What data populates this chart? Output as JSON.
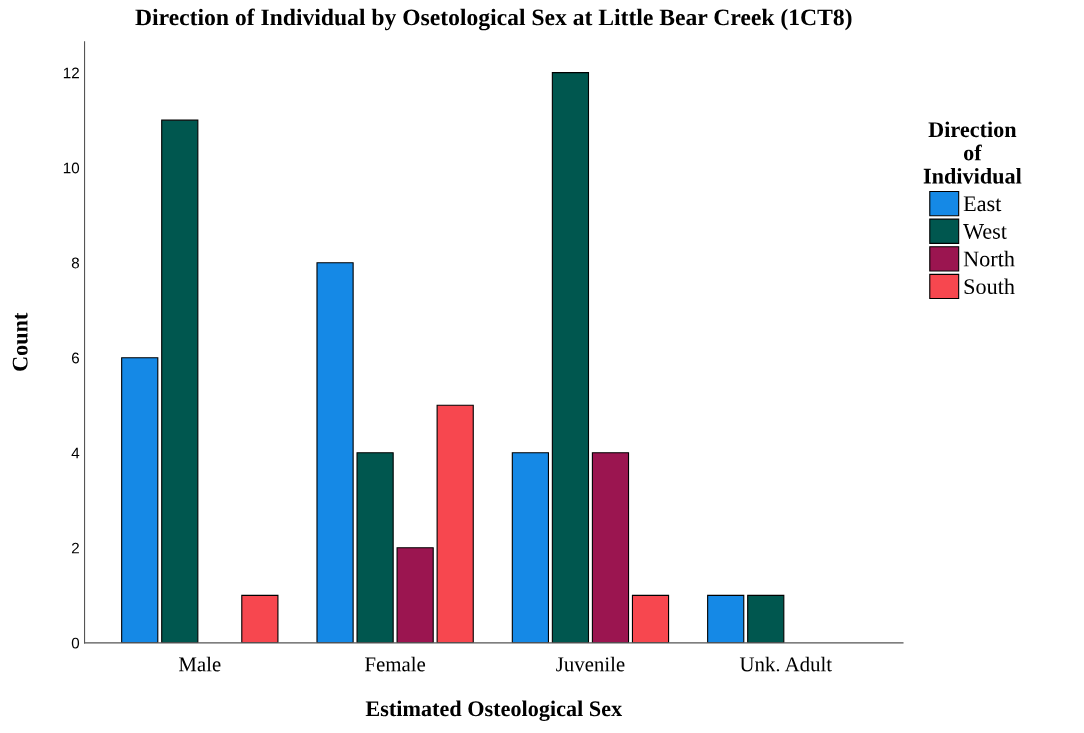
{
  "chart_data": {
    "type": "bar",
    "title": "Direction of Individual by Osetological Sex at Little Bear Creek (1CT8)",
    "xlabel": "Estimated Osteological Sex",
    "ylabel": "Count",
    "legend_title": "Direction\nof\nIndividual",
    "categories": [
      "Male",
      "Female",
      "Juvenile",
      "Unk. Adult"
    ],
    "series": [
      {
        "name": "East",
        "color": "#1589e6",
        "values": [
          6,
          8,
          4,
          1
        ]
      },
      {
        "name": "West",
        "color": "#00574f",
        "values": [
          11,
          4,
          12,
          1
        ]
      },
      {
        "name": "North",
        "color": "#9b1550",
        "values": [
          null,
          2,
          4,
          null
        ]
      },
      {
        "name": "South",
        "color": "#f7474f",
        "values": [
          1,
          5,
          1,
          null
        ]
      }
    ],
    "ylim": [
      0,
      12.65
    ],
    "yticks": [
      0,
      2,
      4,
      6,
      8,
      10,
      12
    ],
    "grid": false,
    "legend": "right"
  }
}
